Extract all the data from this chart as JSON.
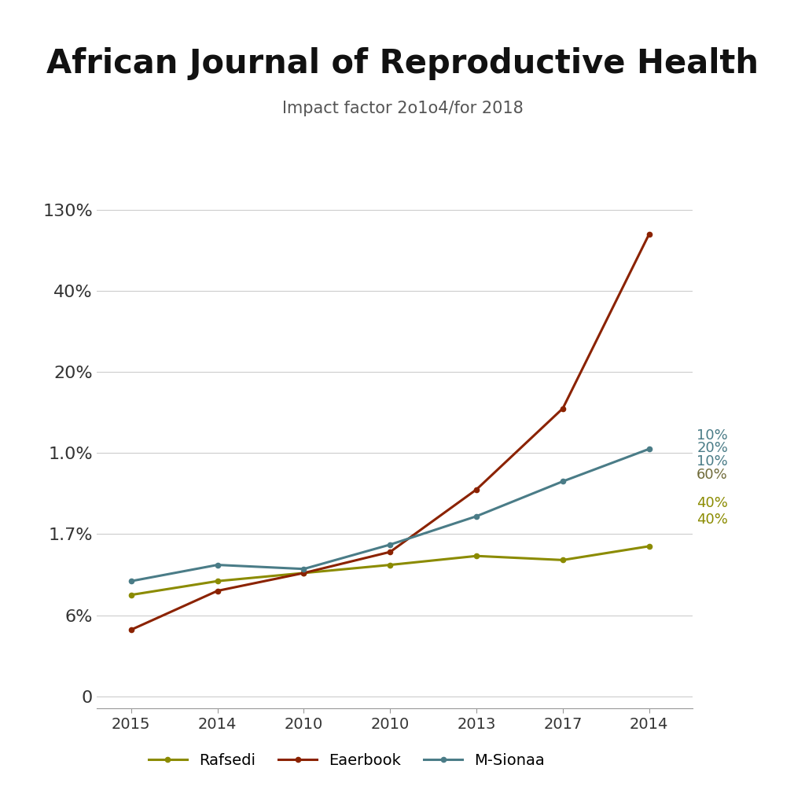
{
  "title": "African Journal of Reproductive Health",
  "subtitle": "Impact factor 2o1o4/for 2018",
  "background_color": "#ffffff",
  "title_fontsize": 30,
  "subtitle_fontsize": 15,
  "x_labels": [
    "2015",
    "2014",
    "2010",
    "2010",
    "2013",
    "2017",
    "2014"
  ],
  "y_labels": [
    "0",
    "6%",
    "1.7%",
    "1.0%",
    "20%",
    "40%",
    "130%"
  ],
  "y_ticks": [
    0,
    1,
    2,
    3,
    4,
    5,
    6
  ],
  "series": [
    {
      "name": "Rafsedi",
      "color": "#8B8B00",
      "data": [
        1.25,
        1.42,
        1.52,
        1.62,
        1.73,
        1.68,
        1.85
      ]
    },
    {
      "name": "Eaerbook",
      "color": "#8B2200",
      "data": [
        0.82,
        1.3,
        1.52,
        1.78,
        2.55,
        3.55,
        5.7
      ]
    },
    {
      "name": "M-Sionaa",
      "color": "#4A7C87",
      "data": [
        1.42,
        1.62,
        1.57,
        1.87,
        2.22,
        2.65,
        3.05
      ]
    }
  ],
  "right_annotations": [
    {
      "text": "10%",
      "y": 3.22,
      "color": "#4A7C87"
    },
    {
      "text": "20%",
      "y": 3.06,
      "color": "#4A7C87"
    },
    {
      "text": "10%",
      "y": 2.9,
      "color": "#4A7C87"
    },
    {
      "text": "60%",
      "y": 2.73,
      "color": "#706B3A"
    },
    {
      "text": "40%",
      "y": 2.38,
      "color": "#8B8B00"
    },
    {
      "text": "40%",
      "y": 2.18,
      "color": "#8B8B00"
    }
  ],
  "legend": [
    {
      "label": "Rafsedi",
      "color": "#8B8B00"
    },
    {
      "label": "Eaerbook",
      "color": "#8B2200"
    },
    {
      "label": "M-Sionaa",
      "color": "#4A7C87"
    }
  ],
  "grid_color": "#cccccc",
  "spine_color": "#999999"
}
